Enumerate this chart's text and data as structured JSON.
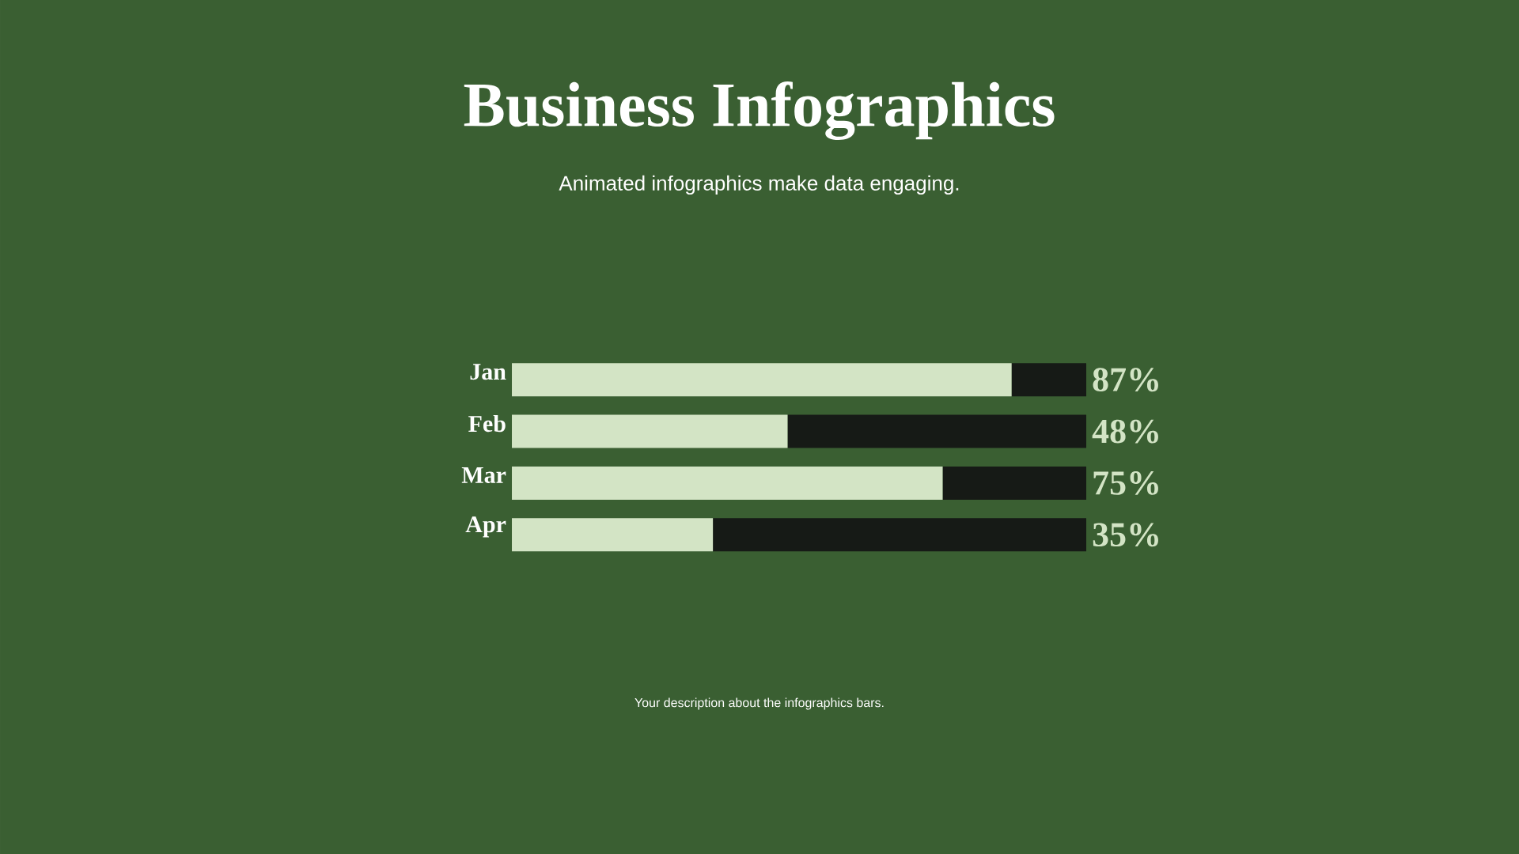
{
  "chart_data": {
    "type": "bar",
    "orientation": "horizontal",
    "stacked": true,
    "title": "Business Infographics",
    "subtitle": "Animated infographics make data engaging.",
    "categories": [
      "Jan",
      "Feb",
      "Mar",
      "Apr"
    ],
    "series": [
      {
        "color": "#d3e4c5",
        "values": [
          87,
          48,
          75,
          35
        ],
        "value_labels": [
          "87%",
          "48%",
          "75%",
          "35%"
        ]
      },
      {
        "color": "#161a16",
        "values": [
          13,
          52,
          25,
          65
        ]
      }
    ],
    "xlim": [
      0,
      100
    ],
    "annotations": [
      "Your description about the infographics bars."
    ]
  }
}
